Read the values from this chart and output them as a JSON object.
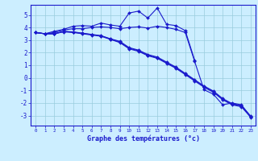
{
  "x": [
    0,
    1,
    2,
    3,
    4,
    5,
    6,
    7,
    8,
    9,
    10,
    11,
    12,
    13,
    14,
    15,
    16,
    17,
    18,
    19,
    20,
    21,
    22,
    23
  ],
  "line_main": [
    3.6,
    3.5,
    3.7,
    3.85,
    4.1,
    4.15,
    4.1,
    4.35,
    4.2,
    4.1,
    5.15,
    5.3,
    4.75,
    5.55,
    4.25,
    4.15,
    3.75,
    1.4,
    null,
    null,
    null,
    null,
    null,
    null
  ],
  "line2": [
    3.6,
    3.5,
    3.6,
    3.8,
    3.9,
    3.9,
    4.0,
    4.05,
    4.0,
    3.9,
    4.0,
    4.05,
    3.95,
    4.1,
    4.0,
    3.85,
    3.6,
    1.3,
    -0.95,
    -1.3,
    -2.15,
    -2.0,
    -2.15,
    -3.1
  ],
  "line3": [
    3.6,
    3.5,
    3.5,
    3.7,
    3.65,
    3.55,
    3.45,
    3.35,
    3.1,
    2.9,
    2.4,
    2.2,
    1.85,
    1.65,
    1.25,
    0.85,
    0.35,
    -0.15,
    -0.65,
    -1.05,
    -1.65,
    -2.05,
    -2.2,
    -3.05
  ],
  "line4": [
    3.6,
    3.5,
    3.5,
    3.65,
    3.6,
    3.5,
    3.4,
    3.3,
    3.05,
    2.8,
    2.3,
    2.1,
    1.75,
    1.55,
    1.15,
    0.75,
    0.25,
    -0.25,
    -0.75,
    -1.15,
    -1.75,
    -2.15,
    -2.3,
    -3.15
  ],
  "line5": [
    3.6,
    3.5,
    3.5,
    3.68,
    3.63,
    3.53,
    3.43,
    3.33,
    3.08,
    2.85,
    2.35,
    2.15,
    1.8,
    1.6,
    1.2,
    0.8,
    0.3,
    -0.2,
    -0.7,
    -1.1,
    -1.7,
    -2.1,
    -2.25,
    -3.1
  ],
  "bg_color": "#cceeff",
  "grid_color": "#99ccdd",
  "line_color": "#1a1acc",
  "xlabel": "Graphe des températures (°c)",
  "ylim": [
    -3.8,
    5.8
  ],
  "xlim": [
    -0.5,
    23.5
  ],
  "yticks": [
    -3,
    -2,
    -1,
    0,
    1,
    2,
    3,
    4,
    5
  ],
  "xticks": [
    0,
    1,
    2,
    3,
    4,
    5,
    6,
    7,
    8,
    9,
    10,
    11,
    12,
    13,
    14,
    15,
    16,
    17,
    18,
    19,
    20,
    21,
    22,
    23
  ]
}
